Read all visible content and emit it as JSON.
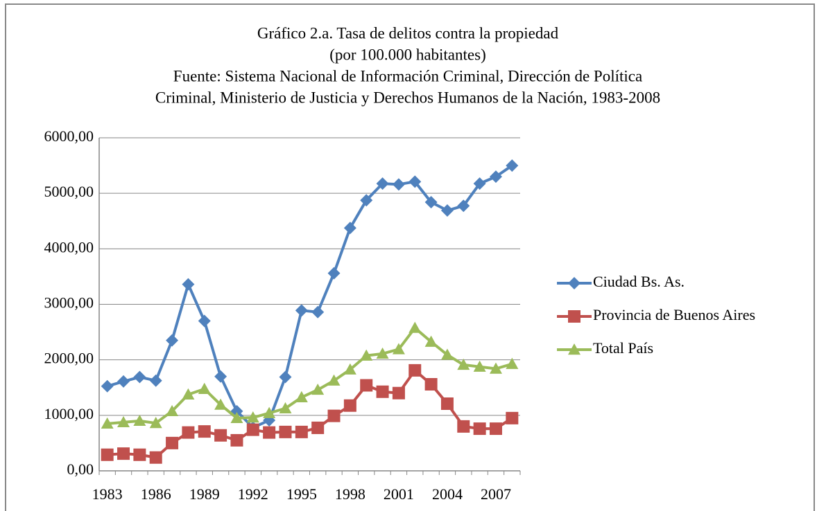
{
  "chart_data": {
    "type": "line",
    "title_lines": [
      "Gráfico 2.a. Tasa de delitos contra la propiedad",
      "(por 100.000 habitantes)",
      "Fuente: Sistema Nacional de Información Criminal, Dirección de Política",
      "Criminal, Ministerio de Justicia y Derechos Humanos de la Nación, 1983-2008"
    ],
    "categories": [
      "1983",
      null,
      null,
      "1986",
      null,
      null,
      "1989",
      null,
      null,
      "1992",
      null,
      null,
      "1995",
      null,
      null,
      "1998",
      null,
      null,
      "2001",
      null,
      null,
      "2004",
      null,
      null,
      "2007",
      null
    ],
    "series": [
      {
        "name": "Ciudad Bs. As.",
        "color": "#4f81bd",
        "marker": "diamond",
        "values": [
          1525,
          1610,
          1690,
          1625,
          2350,
          3360,
          2700,
          1700,
          1075,
          780,
          910,
          1690,
          2890,
          2860,
          3560,
          4375,
          4875,
          5175,
          5160,
          5210,
          4840,
          4690,
          4775,
          5175,
          5300,
          5500
        ]
      },
      {
        "name": "Provincia de Buenos Aires",
        "color": "#c0504d",
        "marker": "square",
        "values": [
          290,
          310,
          290,
          240,
          500,
          690,
          710,
          640,
          550,
          740,
          690,
          700,
          700,
          775,
          990,
          1175,
          1540,
          1425,
          1400,
          1810,
          1560,
          1210,
          800,
          760,
          760,
          950
        ]
      },
      {
        "name": "Total País",
        "color": "#9bbb59",
        "marker": "triangle",
        "values": [
          850,
          875,
          900,
          860,
          1075,
          1375,
          1475,
          1190,
          950,
          960,
          1040,
          1125,
          1325,
          1460,
          1625,
          1825,
          2075,
          2110,
          2190,
          2575,
          2325,
          2090,
          1910,
          1875,
          1840,
          1925
        ]
      }
    ],
    "ylim": [
      0,
      6000
    ],
    "yticks": [
      {
        "value": 0,
        "label": "0,00"
      },
      {
        "value": 1000,
        "label": "1000,00"
      },
      {
        "value": 2000,
        "label": "2000,00"
      },
      {
        "value": 3000,
        "label": "3000,00"
      },
      {
        "value": 4000,
        "label": "4000,00"
      },
      {
        "value": 5000,
        "label": "5000,00"
      },
      {
        "value": 6000,
        "label": "6000,00"
      }
    ],
    "grid": true,
    "legend": "right"
  }
}
